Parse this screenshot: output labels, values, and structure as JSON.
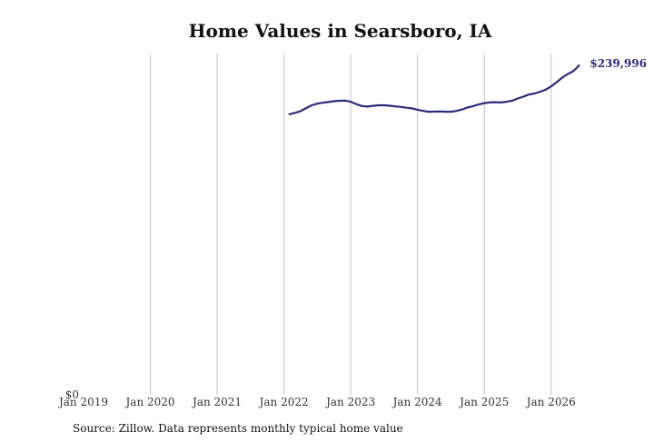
{
  "source_note": "Source: Zillow. Data represents monthly typical home value",
  "chart_data": {
    "type": "line",
    "title": "Home Values in Searsboro, IA",
    "xlabel": "",
    "ylabel": "",
    "ylim": [
      0,
      256000
    ],
    "xlim": [
      "2019-01",
      "2026-11"
    ],
    "grid": {
      "vertical": true,
      "horizontal": false
    },
    "legend": "none",
    "y_tick_labels": [
      "$0"
    ],
    "x_tick_labels": [
      "Jan 2019",
      "Jan 2020",
      "Jan 2021",
      "Jan 2022",
      "Jan 2023",
      "Jan 2024",
      "Jan 2025",
      "Jan 2026"
    ],
    "end_label": "$239,996",
    "line_color": "#2b2a7a",
    "grid_color": "#c4c4c4",
    "series": [
      {
        "points": [
          [
            "2022-02",
            204500
          ],
          [
            "2022-03",
            205500
          ],
          [
            "2022-04",
            206800
          ],
          [
            "2022-05",
            209000
          ],
          [
            "2022-06",
            211000
          ],
          [
            "2022-07",
            212200
          ],
          [
            "2022-08",
            212900
          ],
          [
            "2022-09",
            213400
          ],
          [
            "2022-10",
            214000
          ],
          [
            "2022-11",
            214300
          ],
          [
            "2022-12",
            214400
          ],
          [
            "2023-01",
            213600
          ],
          [
            "2023-02",
            211800
          ],
          [
            "2023-03",
            210500
          ],
          [
            "2023-04",
            210100
          ],
          [
            "2023-05",
            210600
          ],
          [
            "2023-06",
            211000
          ],
          [
            "2023-07",
            211000
          ],
          [
            "2023-08",
            210700
          ],
          [
            "2023-09",
            210200
          ],
          [
            "2023-10",
            209800
          ],
          [
            "2023-11",
            209200
          ],
          [
            "2023-12",
            208800
          ],
          [
            "2024-01",
            207800
          ],
          [
            "2024-02",
            206900
          ],
          [
            "2024-03",
            206300
          ],
          [
            "2024-04",
            206400
          ],
          [
            "2024-05",
            206500
          ],
          [
            "2024-06",
            206300
          ],
          [
            "2024-07",
            206300
          ],
          [
            "2024-08",
            206900
          ],
          [
            "2024-09",
            208000
          ],
          [
            "2024-10",
            209400
          ],
          [
            "2024-11",
            210400
          ],
          [
            "2024-12",
            211600
          ],
          [
            "2025-01",
            212600
          ],
          [
            "2025-02",
            213100
          ],
          [
            "2025-03",
            213300
          ],
          [
            "2025-04",
            213100
          ],
          [
            "2025-05",
            213600
          ],
          [
            "2025-06",
            214300
          ],
          [
            "2025-07",
            216000
          ],
          [
            "2025-08",
            217300
          ],
          [
            "2025-09",
            218800
          ],
          [
            "2025-10",
            219600
          ],
          [
            "2025-11",
            220800
          ],
          [
            "2025-12",
            222300
          ],
          [
            "2026-01",
            224800
          ],
          [
            "2026-02",
            227900
          ],
          [
            "2026-03",
            231200
          ],
          [
            "2026-04",
            233800
          ],
          [
            "2026-05",
            235900
          ],
          [
            "2026-06",
            239996
          ]
        ]
      }
    ]
  }
}
